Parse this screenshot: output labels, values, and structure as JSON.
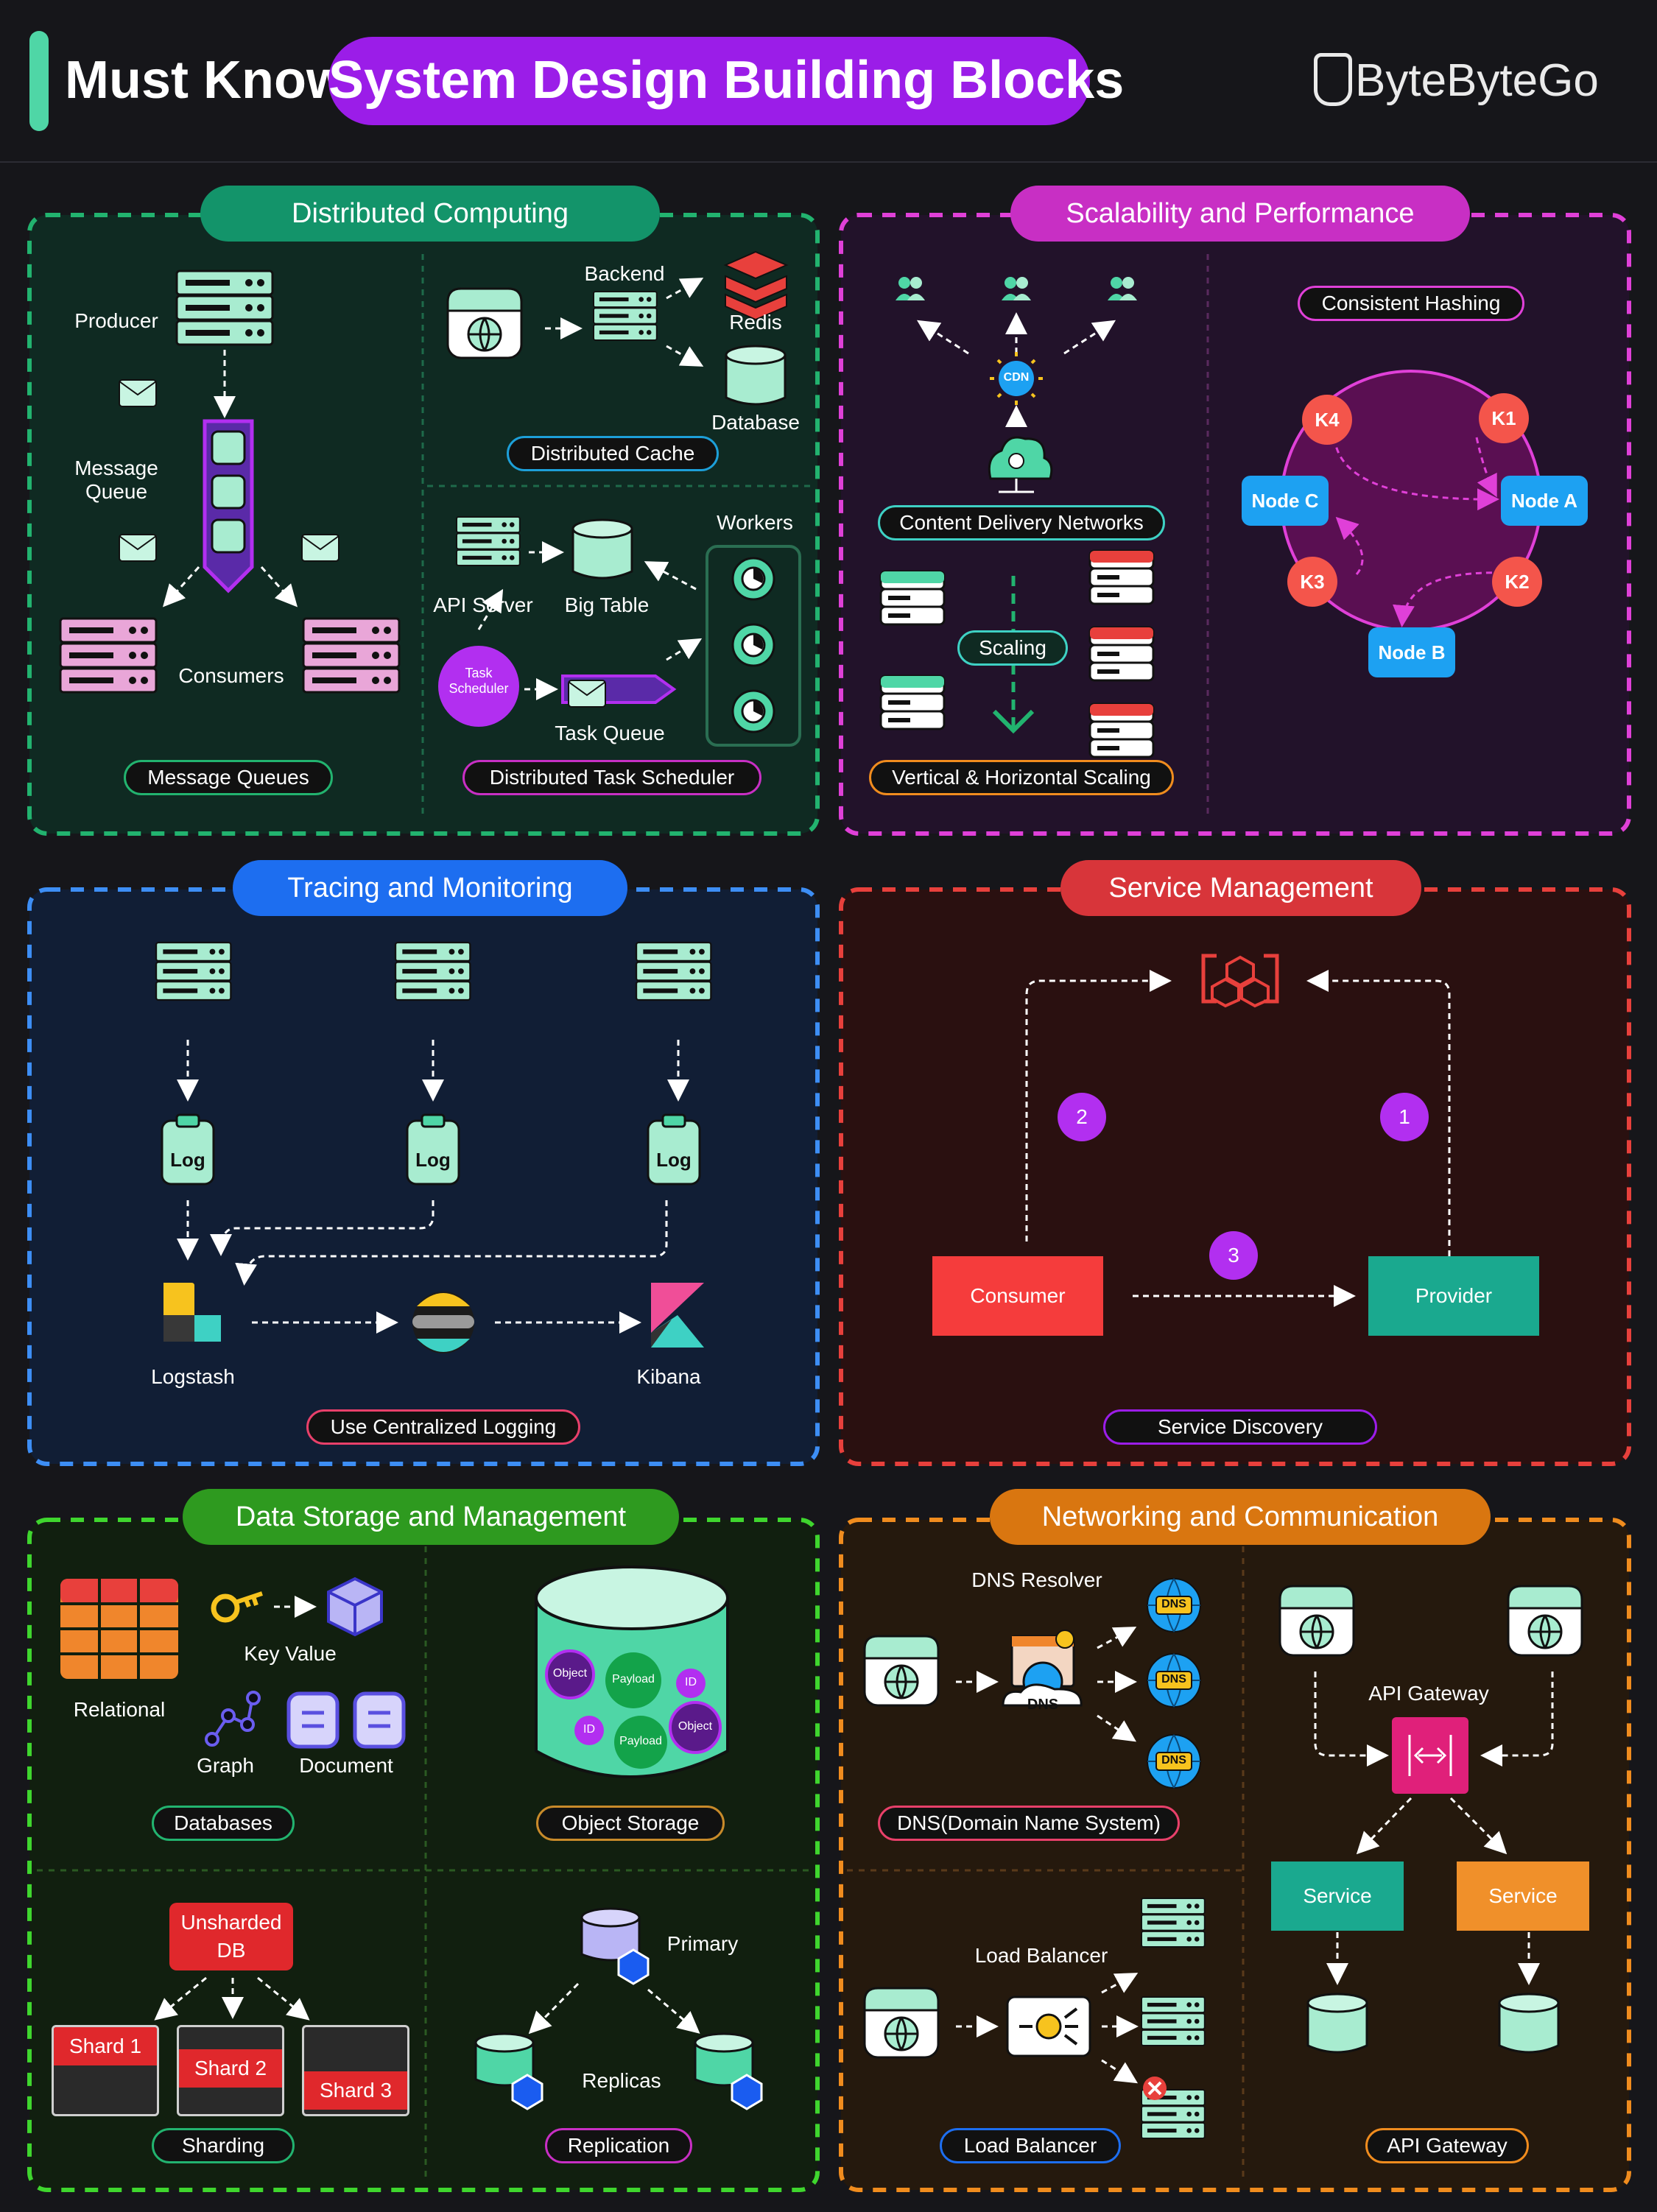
{
  "header": {
    "prefix": "Must Know",
    "title": "System Design Building Blocks",
    "brand": "ByteByteGo"
  },
  "colors": {
    "green": "#4fd6a6",
    "purple": "#9b1de8",
    "magenta": "#e040d8",
    "blue": "#1d6ef0",
    "red": "#e8403c",
    "lime": "#3fd62e",
    "orange": "#f08c1e"
  },
  "panels": {
    "distributed": {
      "title": "Distributed Computing",
      "producer": "Producer",
      "message_queue": "Message Queue",
      "consumers": "Consumers",
      "message_queues": "Message Queues",
      "backend": "Backend",
      "redis": "Redis",
      "database": "Database",
      "distributed_cache": "Distributed Cache",
      "workers": "Workers",
      "api_server": "API Server",
      "big_table": "Big Table",
      "task_scheduler": "Task Scheduler",
      "task_queue": "Task Queue",
      "distributed_task_scheduler": "Distributed Task Scheduler"
    },
    "scalability": {
      "title": "Scalability and Performance",
      "cdn": "CDN",
      "cdn_label": "Content Delivery Networks",
      "scaling": "Scaling",
      "vh_scaling": "Vertical & Horizontal Scaling",
      "consistent_hashing": "Consistent Hashing",
      "nodes": [
        "Node A",
        "Node B",
        "Node C"
      ],
      "keys": [
        "K1",
        "K2",
        "K3",
        "K4"
      ]
    },
    "tracing": {
      "title": "Tracing and Monitoring",
      "log": "Log",
      "logstash": "Logstash",
      "kibana": "Kibana",
      "centralized": "Use Centralized Logging"
    },
    "service": {
      "title": "Service Management",
      "consumer": "Consumer",
      "provider": "Provider",
      "steps": [
        "1",
        "2",
        "3"
      ],
      "discovery": "Service Discovery"
    },
    "storage": {
      "title": "Data Storage and Management",
      "relational": "Relational",
      "key_value": "Key Value",
      "graph": "Graph",
      "document": "Document",
      "databases": "Databases",
      "object_storage": "Object Storage",
      "object": "Object",
      "payload": "Payload",
      "id": "ID",
      "unsharded": "Unsharded DB",
      "shards": [
        "Shard 1",
        "Shard 2",
        "Shard 3"
      ],
      "sharding": "Sharding",
      "primary": "Primary",
      "replicas": "Replicas",
      "replication": "Replication"
    },
    "networking": {
      "title": "Networking and Communication",
      "dns_resolver": "DNS Resolver",
      "dns": "DNS",
      "dns_label": "DNS(Domain Name System)",
      "api_gateway_top": "API Gateway",
      "service": "Service",
      "api_gateway": "API Gateway",
      "load_balancer_top": "Load Balancer",
      "load_balancer": "Load Balancer"
    }
  }
}
